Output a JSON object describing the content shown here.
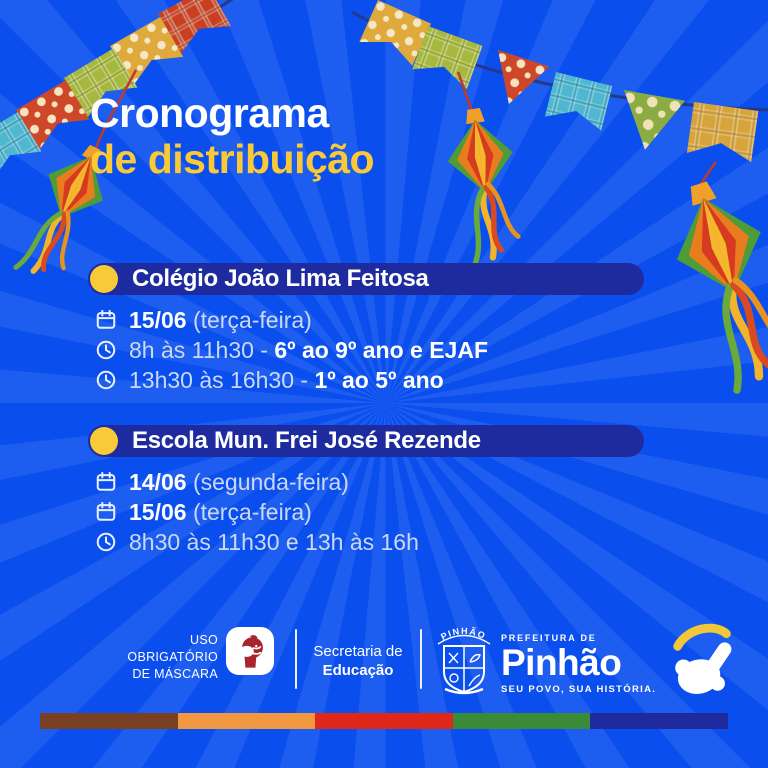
{
  "title": {
    "line1": "Cronograma",
    "line2": "de distribuição"
  },
  "sections": [
    {
      "header": "Colégio João Lima Feitosa",
      "rows": [
        {
          "icon": "calendar-icon",
          "b1": "15/06",
          "r": " (terça-feira)",
          "b2": ""
        },
        {
          "icon": "clock-icon",
          "b1": "",
          "r": "8h às 11h30 - ",
          "b2": "6º ao 9º ano e EJAF"
        },
        {
          "icon": "clock-icon",
          "b1": "",
          "r": "13h30 às 16h30 - ",
          "b2": "1º ao 5º ano"
        }
      ]
    },
    {
      "header": "Escola Mun. Frei José Rezende",
      "rows": [
        {
          "icon": "calendar-icon",
          "b1": "14/06",
          "r": " (segunda-feira)",
          "b2": ""
        },
        {
          "icon": "calendar-icon",
          "b1": "15/06",
          "r": " (terça-feira)",
          "b2": ""
        },
        {
          "icon": "clock-icon",
          "b1": "",
          "r": "8h30 às 11h30 e 13h às 16h",
          "b2": ""
        }
      ]
    }
  ],
  "footer": {
    "mask_notice": {
      "line1": "USO",
      "line2": "OBRIGATÓRIO",
      "line3": "DE MÁSCARA"
    },
    "secretaria": {
      "line1": "Secretaria de",
      "line2": "Educação"
    },
    "prefeitura": {
      "eyebrow": "PREFEITURA DE",
      "name": "Pinhão",
      "tagline": "SEU POVO, SUA HISTÓRIA.",
      "crest_label": "PINHÃO"
    }
  },
  "stripe_colors": [
    "#7a4023",
    "#f0973f",
    "#e0281a",
    "#3a8a38",
    "#1f2a9e"
  ],
  "colors": {
    "background_blue": "#0a4fee",
    "panel_navy": "#1d2b9e",
    "accent_yellow": "#f8ca38",
    "title_yellow": "#f9c937",
    "text_light": "#ccd9f6",
    "text_white": "#ffffff",
    "mask_red": "#a8242e"
  }
}
